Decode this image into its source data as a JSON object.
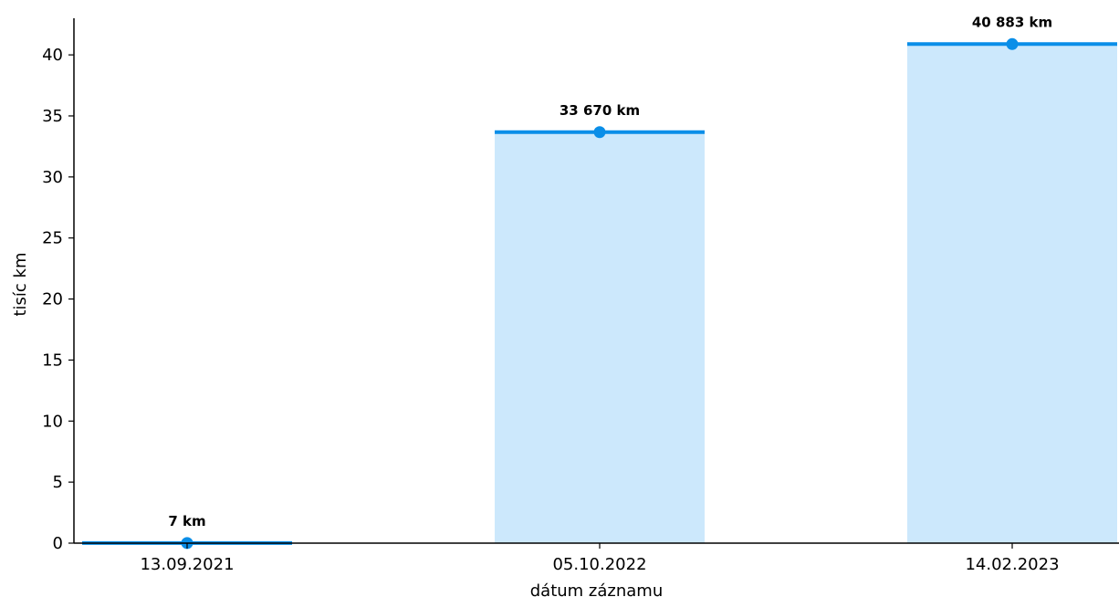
{
  "chart_data": {
    "type": "bar",
    "categories": [
      "13.09.2021",
      "05.10.2022",
      "14.02.2023"
    ],
    "values": [
      0.007,
      33.67,
      40.883
    ],
    "data_labels": [
      "7 km",
      "33 670 km",
      "40 883 km"
    ],
    "xlabel": "dátum záznamu",
    "ylabel": "tisíc km",
    "ylim": [
      0,
      43
    ],
    "yticks": [
      0,
      5,
      10,
      15,
      20,
      25,
      30,
      35,
      40
    ],
    "grid": false,
    "legend": "none",
    "colors": {
      "bar_fill": "#cce8fc",
      "bar_top": "#0a8ee8",
      "marker": "#0a8ee8",
      "axis": "#000000"
    }
  }
}
